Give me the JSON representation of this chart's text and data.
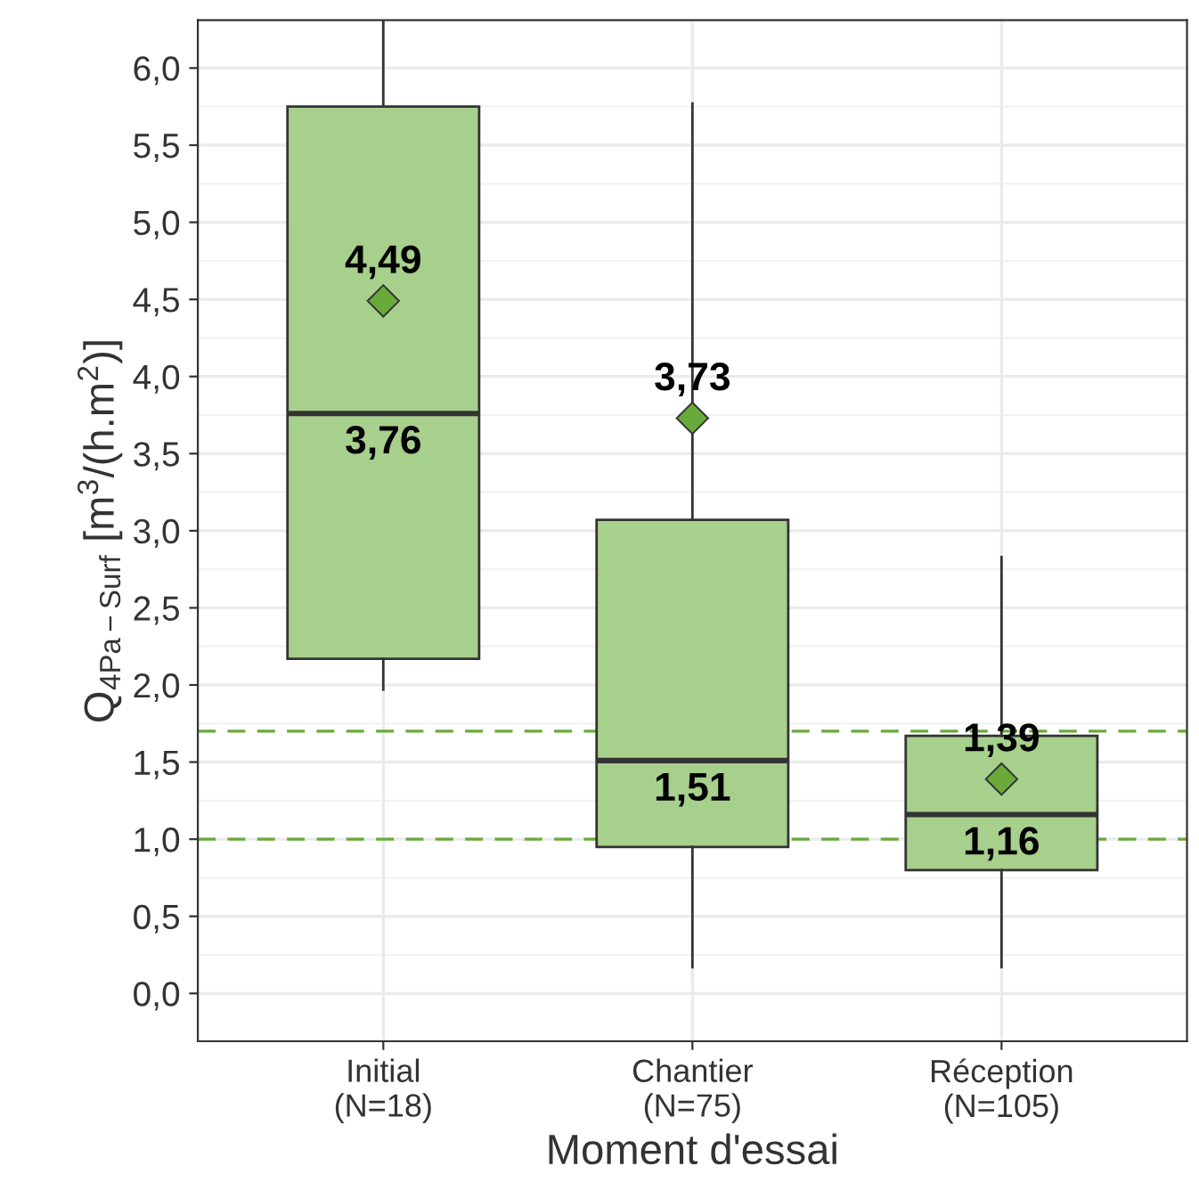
{
  "chart_data": {
    "type": "box",
    "xlabel": "Moment d'essai",
    "ylabel": "Q$_{4Pa−Surf}$ [m$^{3}$/(h.m$^{2}$)]",
    "categories": [
      "Initial\n(N=18)",
      "Chantier\n(N=75)",
      "Réception\n(N=105)"
    ],
    "color": "#a8d08d",
    "boxes": [
      {
        "low": 1.97,
        "q1": 2.17,
        "median": 3.76,
        "q3": 5.75,
        "high": 6.3,
        "mean": 4.49
      },
      {
        "low": 0.17,
        "q1": 0.95,
        "median": 1.51,
        "q3": 3.07,
        "high": 5.77,
        "mean": 3.73
      },
      {
        "low": 0.17,
        "q1": 0.8,
        "median": 1.16,
        "q3": 1.67,
        "high": 2.83,
        "mean": 1.39
      }
    ],
    "annotations": [
      "4,49",
      "3,76",
      "3,73",
      "1,51",
      "1,39",
      "1,16"
    ],
    "ref_lines": [
      {
        "axis": "y",
        "value": 1.0,
        "color": "#6aaa3a",
        "line_style": "dashed"
      },
      {
        "axis": "y",
        "value": 1.7,
        "color": "#6aaa3a",
        "line_style": "dashed"
      }
    ],
    "ylim": [
      -0.31,
      6.31
    ],
    "yticks": [
      {
        "value": 0,
        "label": "0,0"
      },
      {
        "value": 0.5,
        "label": "0,5"
      },
      {
        "value": 1,
        "label": "1,0"
      },
      {
        "value": 1.5,
        "label": "1,5"
      },
      {
        "value": 2,
        "label": "2,0"
      },
      {
        "value": 2.5,
        "label": "2,5"
      },
      {
        "value": 3,
        "label": "3,0"
      },
      {
        "value": 3.5,
        "label": "3,5"
      },
      {
        "value": 4,
        "label": "4,0"
      },
      {
        "value": 4.5,
        "label": "4,5"
      },
      {
        "value": 5,
        "label": "5,0"
      },
      {
        "value": 5.5,
        "label": "5,5"
      },
      {
        "value": 6,
        "label": "6,0"
      }
    ],
    "grid": true,
    "marker": "diamond"
  }
}
